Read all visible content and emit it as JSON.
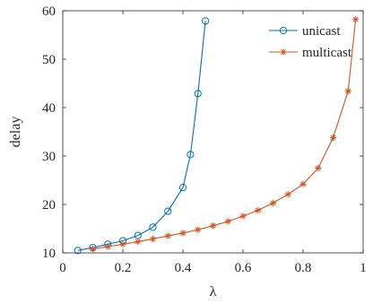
{
  "chart_data": {
    "type": "line",
    "title": "",
    "xlabel": "λ",
    "ylabel": "delay",
    "xlim": [
      0,
      1
    ],
    "ylim": [
      10,
      60
    ],
    "xticks": [
      0,
      0.2,
      0.4,
      0.6,
      0.8,
      1
    ],
    "xtick_labels": [
      "0",
      "0.2",
      "0.4",
      "0.6",
      "0.8",
      "1"
    ],
    "yticks": [
      10,
      20,
      30,
      40,
      50,
      60
    ],
    "ytick_labels": [
      "10",
      "20",
      "30",
      "40",
      "50",
      "60"
    ],
    "grid": false,
    "box": true,
    "legend": {
      "position": "top-right"
    },
    "series": [
      {
        "name": "unicast",
        "color": "#0072BD",
        "marker": "circle",
        "x": [
          0.05,
          0.1,
          0.15,
          0.2,
          0.25,
          0.3,
          0.35,
          0.4,
          0.425,
          0.45,
          0.475
        ],
        "y": [
          10.5,
          11.1,
          11.8,
          12.5,
          13.6,
          15.3,
          18.6,
          23.5,
          30.3,
          42.9,
          57.9
        ]
      },
      {
        "name": "multicast",
        "color": "#D95319",
        "marker": "asterisk",
        "x": [
          0.1,
          0.15,
          0.2,
          0.25,
          0.3,
          0.35,
          0.4,
          0.45,
          0.5,
          0.55,
          0.6,
          0.65,
          0.7,
          0.75,
          0.8,
          0.85,
          0.9,
          0.95,
          0.975
        ],
        "y": [
          10.8,
          11.3,
          11.8,
          12.3,
          12.9,
          13.5,
          14.1,
          14.8,
          15.6,
          16.5,
          17.6,
          18.8,
          20.3,
          22.1,
          24.2,
          27.5,
          33.8,
          43.4,
          58.2
        ]
      }
    ]
  }
}
